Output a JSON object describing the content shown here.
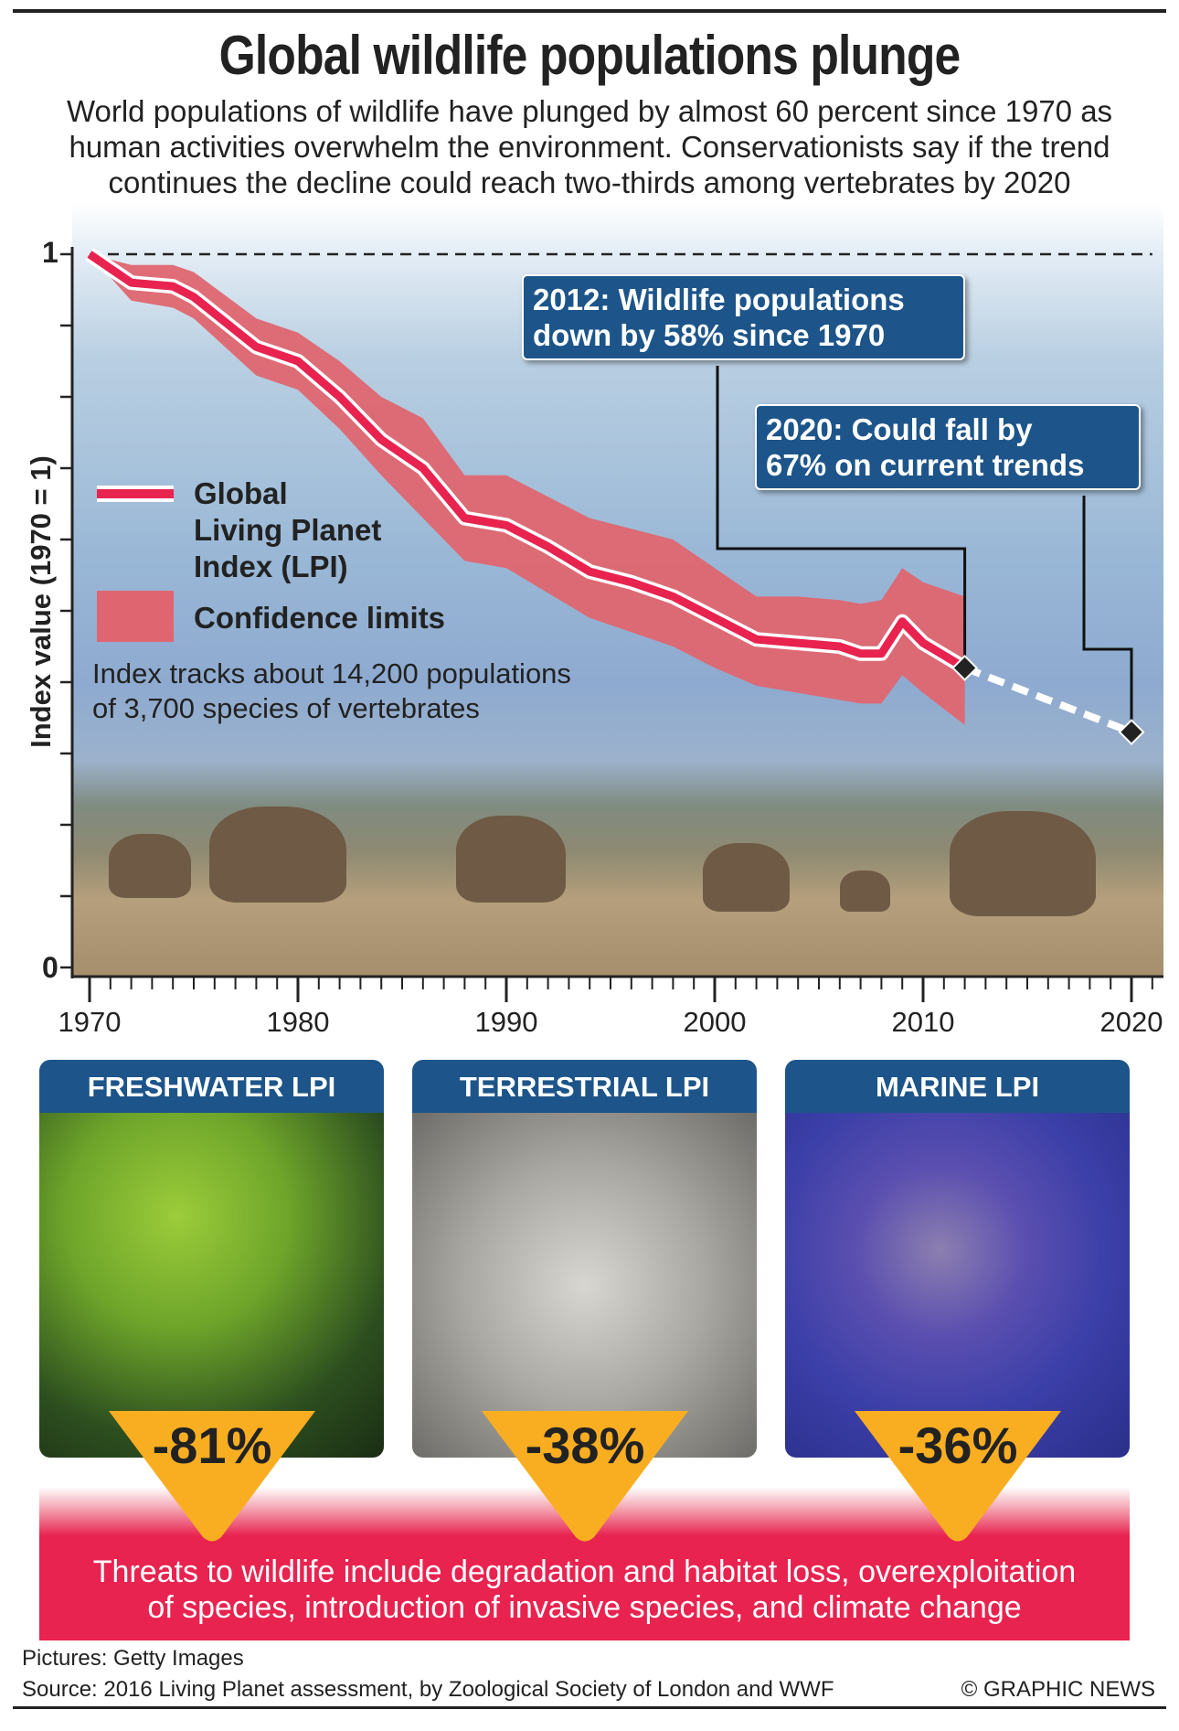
{
  "title": "Global wildlife populations plunge",
  "subtitle": [
    "World populations of wildlife have plunged by almost 60 percent since 1970 as",
    "human activities overwhelm the environment. Conservationists say if the trend",
    "continues the decline could reach two-thirds among vertebrates by 2020"
  ],
  "chart_data": {
    "type": "line",
    "ylabel": "Index value (1970 = 1)",
    "ylim": [
      0,
      1
    ],
    "xlim": [
      1970,
      2020
    ],
    "y_tick_labels": [
      "1",
      "0"
    ],
    "x_tick_labels": [
      "1970",
      "1980",
      "1990",
      "2000",
      "2010",
      "2020"
    ],
    "legend": {
      "line": [
        "Global",
        "Living Planet",
        "Index (LPI)"
      ],
      "band": "Confidence limits",
      "placement": "left"
    },
    "note": [
      "Index tracks about 14,200 populations",
      "of 3,700 species of vertebrates"
    ],
    "series": [
      {
        "name": "Global Living Planet Index (LPI)",
        "x": [
          1970,
          1972,
          1974,
          1975,
          1978,
          1980,
          1982,
          1984,
          1986,
          1988,
          1990,
          1992,
          1994,
          1996,
          1998,
          2000,
          2002,
          2004,
          2006,
          2007,
          2008,
          2009,
          2010,
          2012
        ],
        "values": [
          1.0,
          0.96,
          0.955,
          0.94,
          0.87,
          0.85,
          0.8,
          0.74,
          0.7,
          0.63,
          0.62,
          0.59,
          0.555,
          0.54,
          0.52,
          0.49,
          0.46,
          0.455,
          0.45,
          0.44,
          0.44,
          0.485,
          0.455,
          0.42
        ]
      },
      {
        "name": "Confidence limits upper",
        "x": [
          1970,
          1972,
          1974,
          1975,
          1978,
          1980,
          1982,
          1984,
          1986,
          1988,
          1990,
          1992,
          1994,
          1996,
          1998,
          2000,
          2002,
          2004,
          2006,
          2007,
          2008,
          2009,
          2010,
          2012
        ],
        "values": [
          1.0,
          0.985,
          0.985,
          0.975,
          0.91,
          0.89,
          0.85,
          0.8,
          0.77,
          0.69,
          0.69,
          0.66,
          0.63,
          0.615,
          0.6,
          0.56,
          0.52,
          0.52,
          0.515,
          0.51,
          0.515,
          0.56,
          0.54,
          0.52
        ]
      },
      {
        "name": "Confidence limits lower",
        "x": [
          1970,
          1972,
          1974,
          1975,
          1978,
          1980,
          1982,
          1984,
          1986,
          1988,
          1990,
          1992,
          1994,
          1996,
          1998,
          2000,
          2002,
          2004,
          2006,
          2007,
          2008,
          2009,
          2010,
          2012
        ],
        "values": [
          1.0,
          0.935,
          0.925,
          0.91,
          0.83,
          0.81,
          0.755,
          0.69,
          0.63,
          0.57,
          0.56,
          0.525,
          0.49,
          0.47,
          0.45,
          0.42,
          0.395,
          0.385,
          0.375,
          0.37,
          0.37,
          0.41,
          0.385,
          0.34
        ]
      },
      {
        "name": "Projection",
        "x": [
          2012,
          2020
        ],
        "values": [
          0.42,
          0.33
        ],
        "style": "dashed"
      }
    ],
    "annotations": [
      {
        "year": 2012,
        "lines": [
          "2012: Wildlife populations",
          "down by 58% since 1970"
        ]
      },
      {
        "year": 2020,
        "lines": [
          "2020: Could fall by",
          "67% on current trends"
        ]
      }
    ]
  },
  "panels": [
    {
      "title": "Freshwater LPI",
      "value": "-81%"
    },
    {
      "title": "Terrestrial LPI",
      "value": "-38%"
    },
    {
      "title": "Marine LPI",
      "value": "-36%"
    }
  ],
  "threats": [
    "Threats to wildlife include degradation and habitat loss, overexploitation",
    "of species, introduction of invasive species, and climate change"
  ],
  "footer": {
    "pictures": "Pictures: Getty Images",
    "source": "Source: 2016 Living Planet assessment, by Zoological Society of London and WWF",
    "credit": "© GRAPHIC NEWS"
  },
  "colors": {
    "lpi": "#e8234f",
    "band": "#df6670",
    "callout": "#1d558a",
    "badge": "#f9ae22",
    "threat": "#e8234f"
  }
}
